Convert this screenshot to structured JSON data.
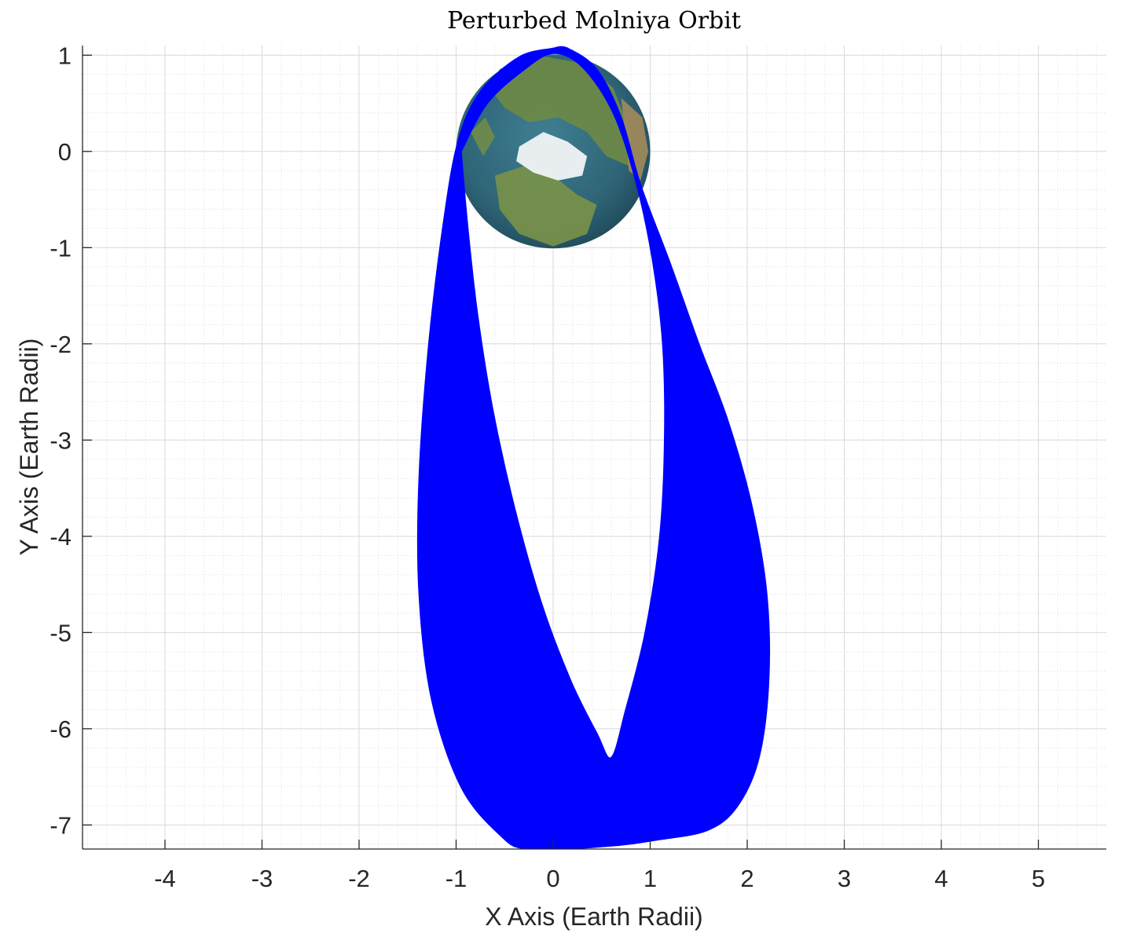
{
  "chart_data": {
    "type": "line",
    "title": "Perturbed Molniya Orbit",
    "xlabel": "X Axis (Earth Radii)",
    "ylabel": "Y Axis (Earth Radii)",
    "xlim": [
      -4.85,
      5.7
    ],
    "ylim": [
      -7.25,
      1.1
    ],
    "x_ticks": [
      -4,
      -3,
      -2,
      -1,
      0,
      1,
      2,
      3,
      4,
      5
    ],
    "y_ticks": [
      1,
      0,
      -1,
      -2,
      -3,
      -4,
      -5,
      -6,
      -7
    ],
    "grid": true,
    "minor_grid": true,
    "earth": {
      "center": [
        0,
        0
      ],
      "radius": 1
    },
    "series": [
      {
        "color": "#0000ff",
        "fill_outer": [
          [
            0.0,
            1.07
          ],
          [
            -0.35,
            0.98
          ],
          [
            -0.75,
            0.62
          ],
          [
            -0.98,
            0.1
          ],
          [
            -1.13,
            -0.75
          ],
          [
            -1.28,
            -2.0
          ],
          [
            -1.38,
            -3.4
          ],
          [
            -1.38,
            -4.6
          ],
          [
            -1.25,
            -5.7
          ],
          [
            -0.95,
            -6.6
          ],
          [
            -0.55,
            -7.1
          ],
          [
            -0.25,
            -7.25
          ],
          [
            0.55,
            -7.22
          ],
          [
            1.1,
            -7.15
          ],
          [
            1.6,
            -7.05
          ],
          [
            1.9,
            -6.8
          ],
          [
            2.12,
            -6.3
          ],
          [
            2.22,
            -5.5
          ],
          [
            2.2,
            -4.6
          ],
          [
            2.05,
            -3.7
          ],
          [
            1.8,
            -2.8
          ],
          [
            1.5,
            -2.0
          ],
          [
            1.2,
            -1.15
          ],
          [
            0.9,
            -0.35
          ],
          [
            0.7,
            0.35
          ],
          [
            0.45,
            0.85
          ],
          [
            0.15,
            1.07
          ],
          [
            0.0,
            1.07
          ]
        ],
        "fill_inner": [
          [
            -0.95,
            0.0
          ],
          [
            -0.88,
            -0.8
          ],
          [
            -0.78,
            -1.7
          ],
          [
            -0.62,
            -2.7
          ],
          [
            -0.4,
            -3.7
          ],
          [
            -0.12,
            -4.7
          ],
          [
            0.18,
            -5.5
          ],
          [
            0.45,
            -6.05
          ],
          [
            0.6,
            -6.3
          ],
          [
            0.75,
            -5.8
          ],
          [
            0.95,
            -5.0
          ],
          [
            1.1,
            -4.0
          ],
          [
            1.15,
            -3.0
          ],
          [
            1.13,
            -2.0
          ],
          [
            1.02,
            -1.1
          ],
          [
            0.85,
            -0.3
          ],
          [
            0.62,
            0.4
          ],
          [
            0.3,
            0.88
          ],
          [
            0.0,
            1.02
          ],
          [
            -0.3,
            0.85
          ],
          [
            -0.68,
            0.5
          ],
          [
            -0.95,
            0.0
          ]
        ]
      }
    ]
  }
}
